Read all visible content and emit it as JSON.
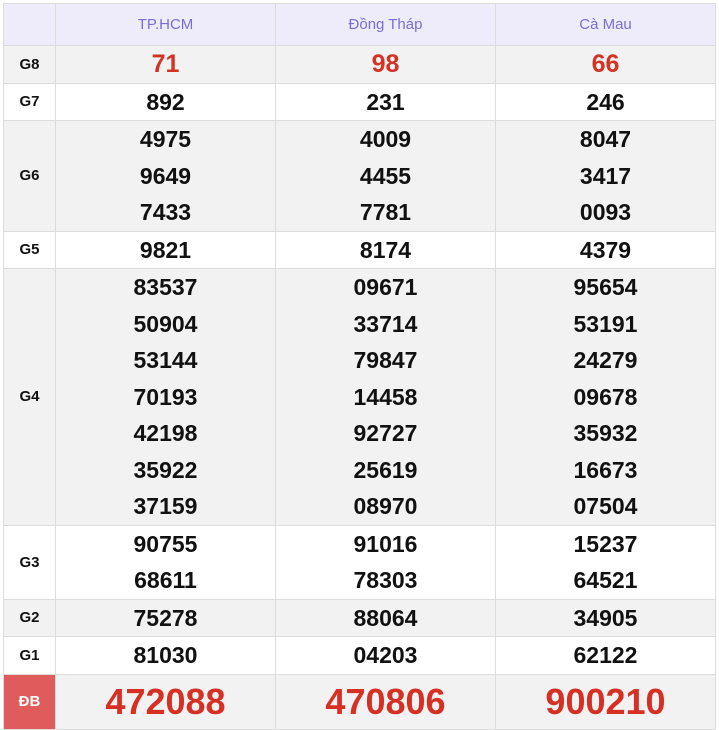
{
  "header": {
    "provinces": [
      "TP.HCM",
      "Đồng Tháp",
      "Cà Mau"
    ]
  },
  "colors": {
    "accent": "#7a6fd0",
    "red": "#d33224",
    "db_label_bg": "#e05b5b"
  },
  "rows": [
    {
      "label": "G8",
      "values": [
        [
          "71"
        ],
        [
          "98"
        ],
        [
          "66"
        ]
      ]
    },
    {
      "label": "G7",
      "values": [
        [
          "892"
        ],
        [
          "231"
        ],
        [
          "246"
        ]
      ]
    },
    {
      "label": "G6",
      "values": [
        [
          "4975",
          "9649",
          "7433"
        ],
        [
          "4009",
          "4455",
          "7781"
        ],
        [
          "8047",
          "3417",
          "0093"
        ]
      ]
    },
    {
      "label": "G5",
      "values": [
        [
          "9821"
        ],
        [
          "8174"
        ],
        [
          "4379"
        ]
      ]
    },
    {
      "label": "G4",
      "values": [
        [
          "83537",
          "50904",
          "53144",
          "70193",
          "42198",
          "35922",
          "37159"
        ],
        [
          "09671",
          "33714",
          "79847",
          "14458",
          "92727",
          "25619",
          "08970"
        ],
        [
          "95654",
          "53191",
          "24279",
          "09678",
          "35932",
          "16673",
          "07504"
        ]
      ]
    },
    {
      "label": "G3",
      "values": [
        [
          "90755",
          "68611"
        ],
        [
          "91016",
          "78303"
        ],
        [
          "15237",
          "64521"
        ]
      ]
    },
    {
      "label": "G2",
      "values": [
        [
          "75278"
        ],
        [
          "88064"
        ],
        [
          "34905"
        ]
      ]
    },
    {
      "label": "G1",
      "values": [
        [
          "81030"
        ],
        [
          "04203"
        ],
        [
          "62122"
        ]
      ]
    },
    {
      "label": "ĐB",
      "values": [
        [
          "472088"
        ],
        [
          "470806"
        ],
        [
          "900210"
        ]
      ]
    }
  ]
}
